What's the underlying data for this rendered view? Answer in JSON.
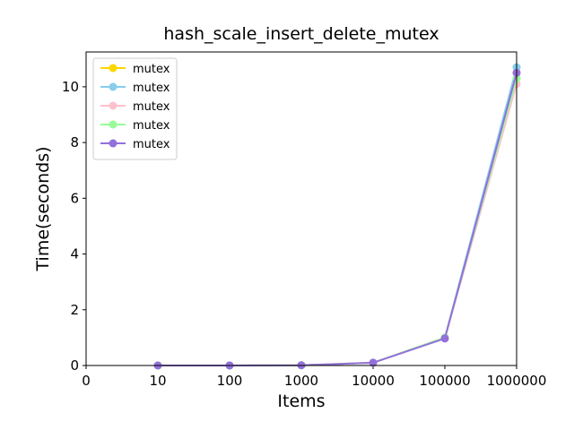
{
  "chart_data": {
    "type": "line",
    "title": "hash_scale_insert_delete_mutex",
    "xlabel": "Items",
    "ylabel": "Time(seconds)",
    "x_ticks": [
      "0",
      "10",
      "100",
      "1000",
      "10000",
      "100000",
      "1000000"
    ],
    "categories": [
      "10",
      "100",
      "1000",
      "10000",
      "100000",
      "1000000"
    ],
    "y_ticks": [
      "0",
      "2",
      "4",
      "6",
      "8",
      "10"
    ],
    "ylim": [
      0,
      11.25
    ],
    "legend_position": "top-left",
    "grid": false,
    "series": [
      {
        "name": "mutex",
        "color": "#ffd700",
        "values": [
          0.0,
          0.001,
          0.01,
          0.1,
          1.0,
          10.5
        ]
      },
      {
        "name": "mutex",
        "color": "#87ceeb",
        "values": [
          0.0,
          0.001,
          0.01,
          0.1,
          1.0,
          10.7
        ]
      },
      {
        "name": "mutex",
        "color": "#ffc0cb",
        "values": [
          0.0,
          0.001,
          0.01,
          0.1,
          0.98,
          10.1
        ]
      },
      {
        "name": "mutex",
        "color": "#98fb98",
        "values": [
          0.0,
          0.001,
          0.01,
          0.1,
          1.0,
          10.3
        ]
      },
      {
        "name": "mutex",
        "color": "#9370db",
        "values": [
          0.0,
          0.001,
          0.01,
          0.1,
          0.97,
          10.5
        ]
      }
    ]
  }
}
